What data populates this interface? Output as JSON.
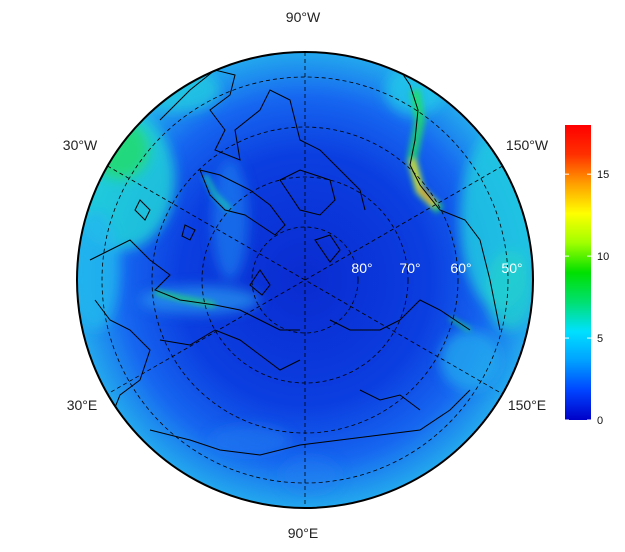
{
  "map": {
    "projection": "north-polar-stereographic",
    "lon_labels": {
      "top": "90°W",
      "upper_left": "30°W",
      "upper_right": "150°W",
      "lower_left": "30°E",
      "lower_right": "150°E",
      "bottom": "90°E"
    },
    "lat_labels": [
      "80°",
      "70°",
      "60°",
      "50°"
    ],
    "colors": {
      "ocean_low": "#0a2bd0",
      "mid": "#2f6ff0",
      "high_cyan": "#19c8e8",
      "green": "#11dd55",
      "coast": "#000000"
    }
  },
  "colorbar": {
    "ticks": [
      "15",
      "10",
      "5",
      "0"
    ],
    "tick_values": [
      15,
      10,
      5,
      0
    ],
    "min": 0,
    "max": 18,
    "gradient": [
      "#0000c8",
      "#0044ff",
      "#00a0ff",
      "#00e0ff",
      "#00e070",
      "#00e000",
      "#a0ff00",
      "#ffff00",
      "#ffa000",
      "#ff3000",
      "#ff0000"
    ]
  }
}
